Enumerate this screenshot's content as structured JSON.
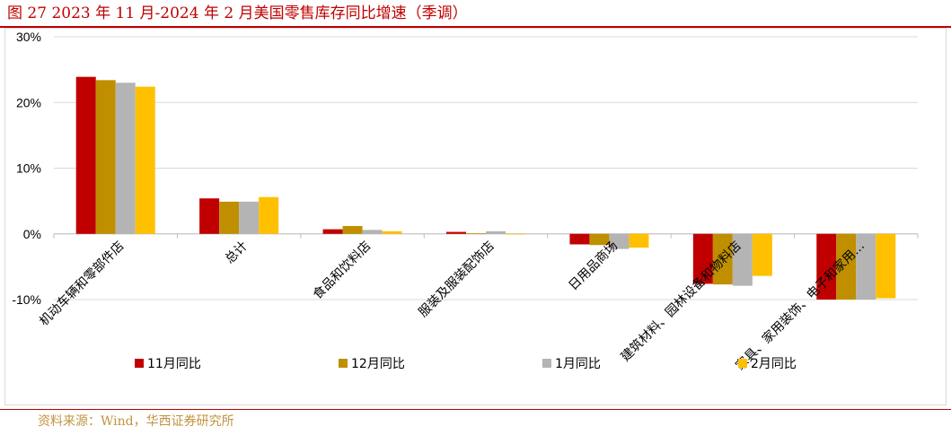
{
  "title": "图 27 2023 年 11 月-2024 年 2 月美国零售库存同比增速（季调）",
  "source": "资料来源：Wind，华西证券研究所",
  "chart_data": {
    "type": "bar",
    "title": "",
    "xlabel": "",
    "ylabel": "",
    "ylim": [
      -10,
      30
    ],
    "y_ticks": [
      "30%",
      "20%",
      "10%",
      "0%",
      "-10%"
    ],
    "y_tick_values": [
      30,
      20,
      10,
      0,
      -10
    ],
    "grid": true,
    "legend_position": "bottom",
    "categories": [
      "机动车辆和零部件店",
      "总计",
      "食品和饮料店",
      "服装及服装配饰店",
      "日用品商场",
      "建筑材料、园林设备和物料店",
      "家具、家用装饰、电子和家用…"
    ],
    "series": [
      {
        "name": "11月同比",
        "color": "#c00000",
        "values": [
          23.9,
          5.4,
          0.7,
          0.3,
          -1.6,
          -7.6,
          -10.0
        ]
      },
      {
        "name": "12月同比",
        "color": "#bf8f00",
        "values": [
          23.4,
          4.9,
          1.2,
          0.1,
          -1.7,
          -7.7,
          -10.0
        ]
      },
      {
        "name": "1月同比",
        "color": "#b4b4b4",
        "values": [
          23.0,
          4.9,
          0.6,
          0.4,
          -2.3,
          -7.9,
          -10.0
        ]
      },
      {
        "name": "2月同比",
        "color": "#ffc000",
        "values": [
          22.4,
          5.6,
          0.4,
          -0.1,
          -2.1,
          -6.4,
          -9.8
        ]
      }
    ]
  }
}
